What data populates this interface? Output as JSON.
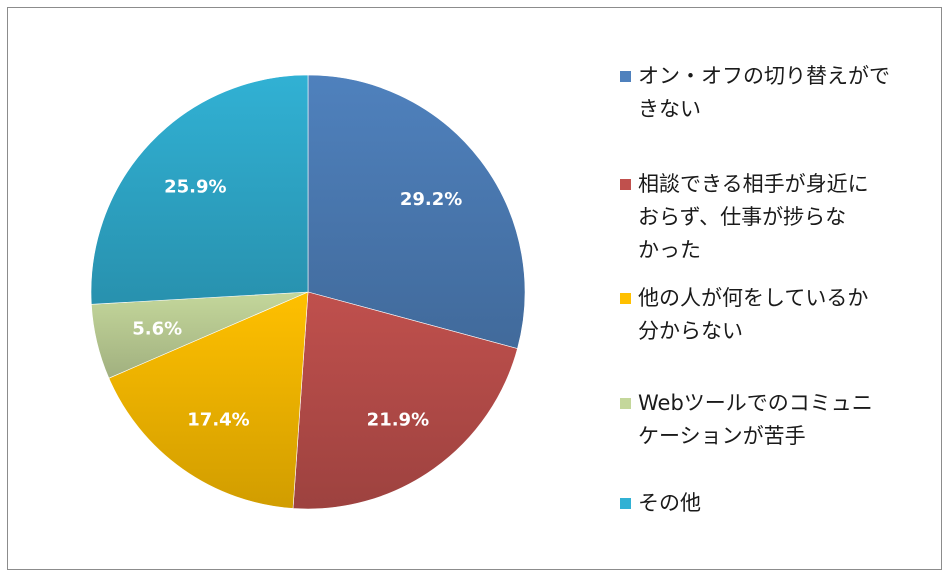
{
  "chart_data": {
    "type": "pie",
    "slices": [
      {
        "label": "オン・オフの切り替えができない",
        "lines": [
          "オン・オフの切り替えがで",
          "きない"
        ],
        "value": 29.2,
        "display": "29.2%",
        "color": "#4f81bd"
      },
      {
        "label": "相談できる相手が身近におらず、仕事が捗らなかった",
        "lines": [
          "相談できる相手が身近に",
          "おらず、仕事が捗らな",
          "かった"
        ],
        "value": 21.9,
        "display": "21.9%",
        "color": "#c0504d"
      },
      {
        "label": "他の人が何をしているか分からない",
        "lines": [
          "他の人が何をしているか",
          "分からない"
        ],
        "value": 17.4,
        "display": "17.4%",
        "color": "#ffc000"
      },
      {
        "label": "Webツールでのコミュニケーションが苦手",
        "lines": [
          "Webツールでのコミュニ",
          "ケーションが苦手"
        ],
        "value": 5.6,
        "display": "5.6%",
        "color": "#c4d79b"
      },
      {
        "label": "その他",
        "lines": [
          "その他"
        ],
        "value": 25.9,
        "display": "25.9%",
        "color": "#31b1d4"
      }
    ],
    "legend_position": "right"
  }
}
